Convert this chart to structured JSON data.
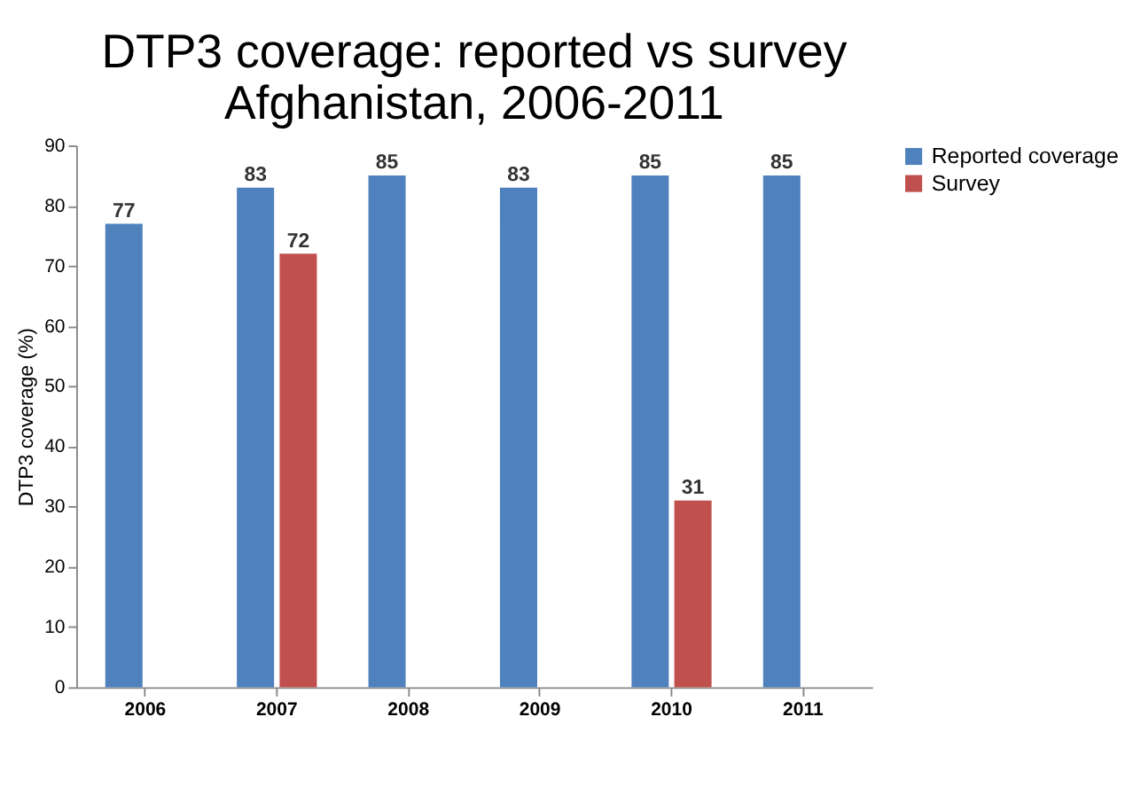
{
  "chart_data": {
    "type": "bar",
    "title": "DTP3 coverage: reported vs survey\nAfghanistan, 2006-2011",
    "ylabel": "DTP3 coverage (%)",
    "categories": [
      "2006",
      "2007",
      "2008",
      "2009",
      "2010",
      "2011"
    ],
    "series": [
      {
        "name": "Reported coverage",
        "color": "#4f81bd",
        "values": [
          77,
          83,
          85,
          83,
          85,
          85
        ]
      },
      {
        "name": "Survey",
        "color": "#c0504d",
        "values": [
          null,
          72,
          null,
          null,
          31,
          null
        ]
      }
    ],
    "ylim": [
      0,
      90
    ],
    "yticks": [
      0,
      10,
      20,
      30,
      40,
      50,
      60,
      70,
      80,
      90
    ],
    "grid": false,
    "legend": "right",
    "data_labels": true
  }
}
